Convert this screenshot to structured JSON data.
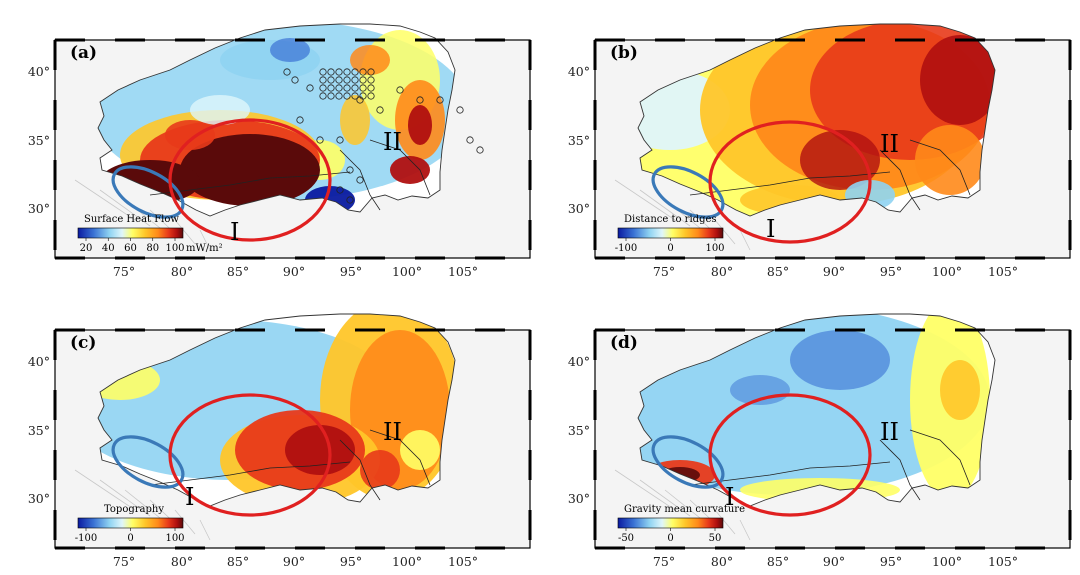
{
  "figure": {
    "x_tick_labels": [
      "75°",
      "80°",
      "85°",
      "90°",
      "95°",
      "100°",
      "105°"
    ],
    "y_tick_labels": [
      "40°",
      "35°",
      "30°"
    ],
    "region_labels": {
      "one": "I",
      "two": "II"
    },
    "colors": {
      "blue_ellipse": "#3a79b8",
      "red_ellipse": "#e02020",
      "frame": "#000000",
      "ramp": [
        "#0a1aa0",
        "#3a72d4",
        "#8fd3f2",
        "#dff6fb",
        "#ffff66",
        "#ffc629",
        "#ff8a1a",
        "#e83a1a",
        "#b01010",
        "#5a0a0a"
      ]
    },
    "panels": [
      {
        "id": "a",
        "label": "(a)",
        "legend_title": "Surface Heat Flow",
        "legend_ticks": [
          "20",
          "40",
          "60",
          "80",
          "100"
        ],
        "legend_unit": "mW/m²",
        "has_heatflow_points": true
      },
      {
        "id": "b",
        "label": "(b)",
        "legend_title": "Distance to ridges",
        "legend_ticks": [
          "-100",
          "0",
          "100"
        ],
        "legend_unit": "",
        "has_heatflow_points": false
      },
      {
        "id": "c",
        "label": "(c)",
        "legend_title": "Topography",
        "legend_ticks": [
          "-100",
          "0",
          "100"
        ],
        "legend_unit": "",
        "has_heatflow_points": false
      },
      {
        "id": "d",
        "label": "(d)",
        "legend_title": "Gravity mean curvature",
        "legend_ticks": [
          "-50",
          "0",
          "50"
        ],
        "legend_unit": "",
        "has_heatflow_points": false
      }
    ]
  }
}
